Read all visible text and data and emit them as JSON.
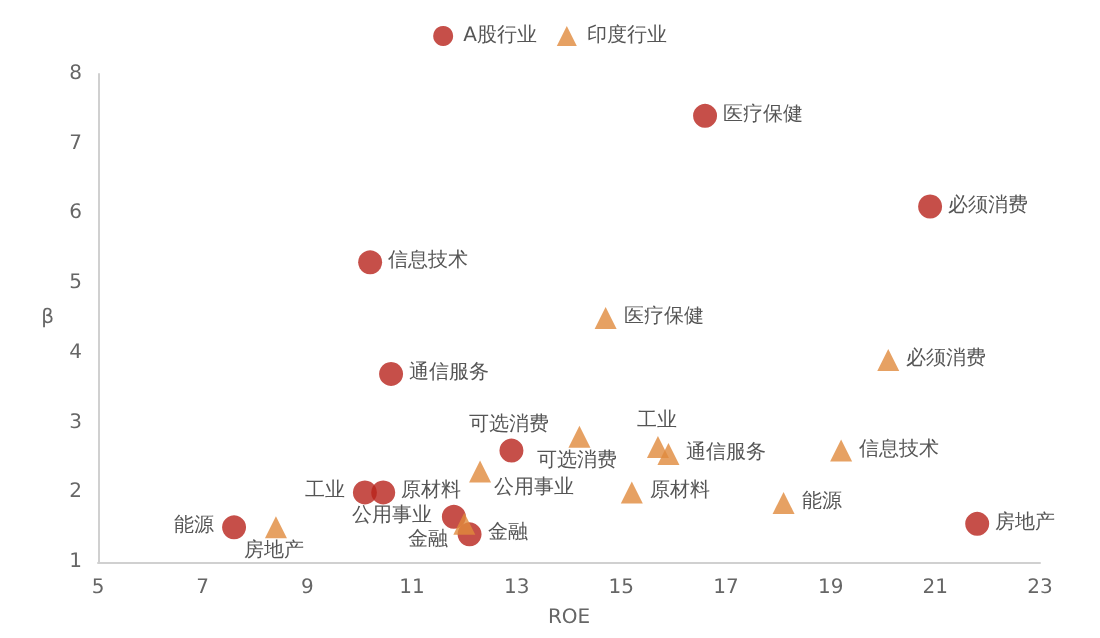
{
  "chart_data": {
    "type": "scatter",
    "xlabel": "ROE",
    "ylabel": "β",
    "xlim": [
      5,
      23
    ],
    "xticks": [
      5,
      7,
      9,
      11,
      13,
      15,
      17,
      19,
      21,
      23
    ],
    "ylim": [
      1,
      8
    ],
    "yticks": [
      1,
      2,
      3,
      4,
      5,
      6,
      7,
      8
    ],
    "grid": false,
    "legend": "top",
    "tick_labels": true,
    "series": [
      {
        "name": "A股行业",
        "color": "#b8231c",
        "marker": "circle",
        "x": [
          16.6,
          20.9,
          10.2,
          10.6,
          12.9,
          10.1,
          10.45,
          11.8,
          12.1,
          7.6,
          21.8
        ],
        "values": [
          7.4,
          6.1,
          5.3,
          3.7,
          2.6,
          2.0,
          2.0,
          1.65,
          1.4,
          1.5,
          1.55
        ]
      },
      {
        "name": "印度行业",
        "color": "#e08a3c",
        "marker": "triangle",
        "x": [
          14.7,
          20.1,
          14.2,
          15.7,
          15.9,
          19.2,
          15.2,
          18.1,
          12.3,
          12.0,
          8.4
        ],
        "values": [
          4.5,
          3.9,
          2.8,
          2.65,
          2.55,
          2.6,
          2.0,
          1.85,
          2.3,
          1.55,
          1.5
        ]
      }
    ],
    "annotations": [
      {
        "text": "医疗保健",
        "x": 16.6,
        "y": 7.4
      },
      {
        "text": "必须消费",
        "x": 20.9,
        "y": 6.1
      },
      {
        "text": "信息技术",
        "x": 10.2,
        "y": 5.3
      },
      {
        "text": "通信服务",
        "x": 10.6,
        "y": 3.7
      },
      {
        "text": "可选消费",
        "x": 12.9,
        "y": 2.6
      },
      {
        "text": "工业",
        "x": 10.1,
        "y": 2.0
      },
      {
        "text": "原材料",
        "x": 10.45,
        "y": 2.0
      },
      {
        "text": "公用事业",
        "x": 11.8,
        "y": 1.65
      },
      {
        "text": "金融",
        "x": 12.1,
        "y": 1.4
      },
      {
        "text": "能源",
        "x": 7.6,
        "y": 1.5
      },
      {
        "text": "房地产",
        "x": 21.8,
        "y": 1.55
      },
      {
        "text": "医疗保健",
        "x": 14.7,
        "y": 4.5
      },
      {
        "text": "必须消费",
        "x": 20.1,
        "y": 3.9
      },
      {
        "text": "可选消费",
        "x": 14.2,
        "y": 2.8
      },
      {
        "text": "工业",
        "x": 15.7,
        "y": 2.65
      },
      {
        "text": "通信服务",
        "x": 15.9,
        "y": 2.55
      },
      {
        "text": "信息技术",
        "x": 19.2,
        "y": 2.6
      },
      {
        "text": "原材料",
        "x": 15.2,
        "y": 2.0
      },
      {
        "text": "能源",
        "x": 18.1,
        "y": 1.85
      },
      {
        "text": "公用事业",
        "x": 12.3,
        "y": 2.3
      },
      {
        "text": "金融",
        "x": 12.0,
        "y": 1.55
      },
      {
        "text": "房地产",
        "x": 8.4,
        "y": 1.5
      }
    ]
  }
}
